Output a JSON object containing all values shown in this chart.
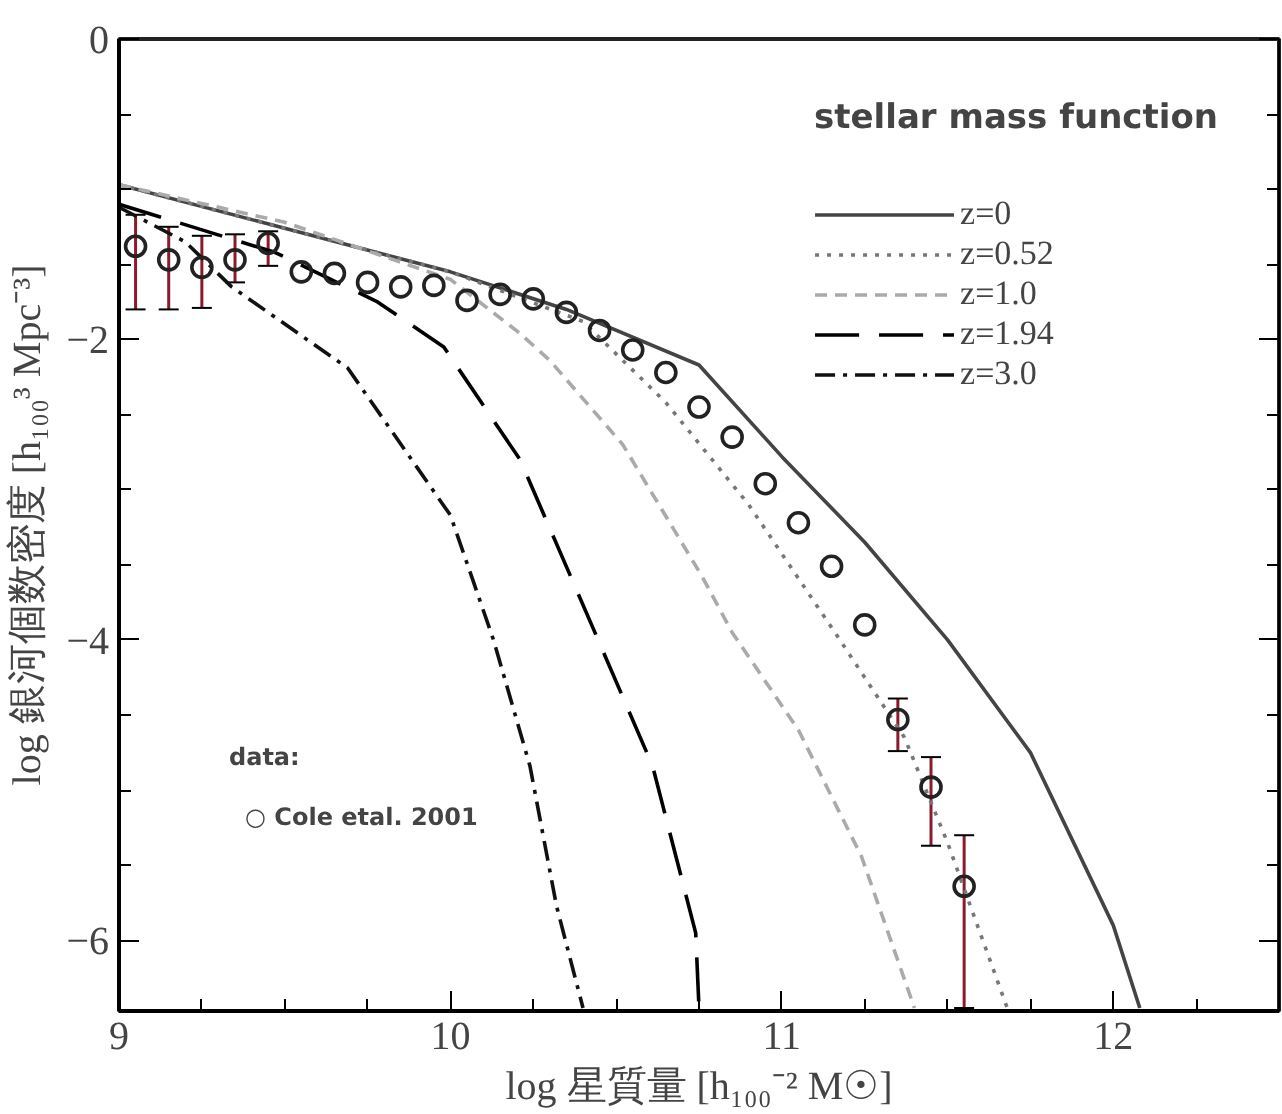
{
  "chart_data": {
    "type": "line",
    "xlabel": "log 星質量 [h₁₀₀⁻² M☉]",
    "ylabel": "log 銀河個数密度 [h₁₀₀³ Mpc⁻³]",
    "annotations": [
      "stellar mass function",
      "data:",
      "○ Cole etal. 2001"
    ],
    "xlim": [
      9,
      12.5
    ],
    "ylim": [
      -6.47,
      0
    ],
    "xticks": [
      9,
      {
        "value": 9.25,
        "label": null
      },
      {
        "value": 9.5,
        "label": null
      },
      {
        "value": 9.75,
        "label": null
      },
      10,
      {
        "value": 10.25,
        "label": null
      },
      {
        "value": 10.5,
        "label": null
      },
      {
        "value": 10.75,
        "label": null
      },
      11,
      {
        "value": 11.25,
        "label": null
      },
      {
        "value": 11.5,
        "label": null
      },
      {
        "value": 11.75,
        "label": null
      },
      12,
      {
        "value": 12.25,
        "label": null
      }
    ],
    "yticks": [
      {
        "value": -6,
        "label": "−6"
      },
      {
        "value": -5.5,
        "label": null
      },
      {
        "value": -5,
        "label": null
      },
      {
        "value": -4.5,
        "label": null
      },
      {
        "value": -4,
        "label": "−4"
      },
      {
        "value": -3.5,
        "label": null
      },
      {
        "value": -3,
        "label": null
      },
      {
        "value": -2.5,
        "label": null
      },
      {
        "value": -2,
        "label": "−2"
      },
      {
        "value": -1.5,
        "label": null
      },
      {
        "value": -1,
        "label": null
      },
      {
        "value": -0.5,
        "label": null
      },
      0
    ],
    "grid": false,
    "legend": "top right",
    "series": [
      {
        "name": "z=0",
        "color": "#444444",
        "line_style": "solid",
        "x": [
          9,
          9.5,
          10,
          10.35,
          10.75,
          11,
          11.25,
          11.5,
          11.75,
          12,
          12.08
        ],
        "values": [
          -0.97,
          -1.26,
          -1.55,
          -1.8,
          -2.17,
          -2.78,
          -3.35,
          -4.0,
          -4.75,
          -5.9,
          -6.45
        ]
      },
      {
        "name": "z=0.52",
        "color": "#777777",
        "line_style": "dotted",
        "x": [
          9,
          9.5,
          10,
          10.4,
          10.65,
          10.9,
          11.16,
          11.37,
          11.5,
          11.68
        ],
        "values": [
          -0.97,
          -1.26,
          -1.55,
          -1.88,
          -2.42,
          -3.1,
          -3.95,
          -4.65,
          -5.35,
          -6.45
        ]
      },
      {
        "name": "z=1.0",
        "color": "#aaaaaa",
        "line_style": "dashed",
        "x": [
          9,
          9.5,
          10,
          10.21,
          10.3,
          10.52,
          10.76,
          10.85,
          11.05,
          11.24,
          11.4
        ],
        "values": [
          -0.97,
          -1.22,
          -1.6,
          -1.96,
          -2.14,
          -2.7,
          -3.58,
          -3.95,
          -4.6,
          -5.44,
          -6.45
        ]
      },
      {
        "name": "z=1.94",
        "color": "#000000",
        "line_style": "longdash",
        "x": [
          9,
          9.47,
          9.78,
          9.98,
          10.21,
          10.43,
          10.61,
          10.74,
          10.75
        ],
        "values": [
          -1.1,
          -1.42,
          -1.75,
          -2.05,
          -2.8,
          -3.92,
          -4.84,
          -5.95,
          -6.45
        ]
      },
      {
        "name": "z=3.0",
        "color": "#111111",
        "line_style": "dashdot",
        "x": [
          9,
          9.2,
          9.34,
          9.69,
          10,
          10.13,
          10.24,
          10.32,
          10.4
        ],
        "values": [
          -1.12,
          -1.35,
          -1.65,
          -2.19,
          -3.17,
          -4.0,
          -4.84,
          -5.77,
          -6.45
        ]
      },
      {
        "type": "scatter",
        "marker": "circle",
        "color": "#222222",
        "x": [
          9.05,
          9.15,
          9.25,
          9.35,
          9.45,
          9.55,
          9.65,
          9.75,
          9.85,
          9.95,
          10.05,
          10.15,
          10.25,
          10.35,
          10.45,
          10.55,
          10.65,
          10.75,
          10.85,
          10.95,
          11.05,
          11.15,
          11.25,
          11.35,
          11.45,
          11.55
        ],
        "values": [
          -1.38,
          -1.47,
          -1.52,
          -1.47,
          -1.36,
          -1.55,
          -1.56,
          -1.62,
          -1.65,
          -1.64,
          -1.74,
          -1.7,
          -1.73,
          -1.82,
          -1.94,
          -2.07,
          -2.22,
          -2.45,
          -2.65,
          -2.96,
          -3.22,
          -3.51,
          -3.9,
          -4.53,
          -4.98,
          -5.64
        ],
        "errors": [
          [
            -1.8,
            -1.17
          ],
          [
            -1.8,
            -1.25
          ],
          [
            -1.79,
            -1.31
          ],
          [
            -1.62,
            -1.3
          ],
          [
            -1.51,
            -1.28
          ],
          null,
          null,
          null,
          null,
          null,
          null,
          null,
          null,
          null,
          null,
          null,
          null,
          null,
          null,
          null,
          null,
          null,
          null,
          [
            -4.74,
            -4.39
          ],
          [
            -5.37,
            -4.78
          ],
          [
            -6.45,
            -5.3
          ]
        ]
      }
    ]
  }
}
